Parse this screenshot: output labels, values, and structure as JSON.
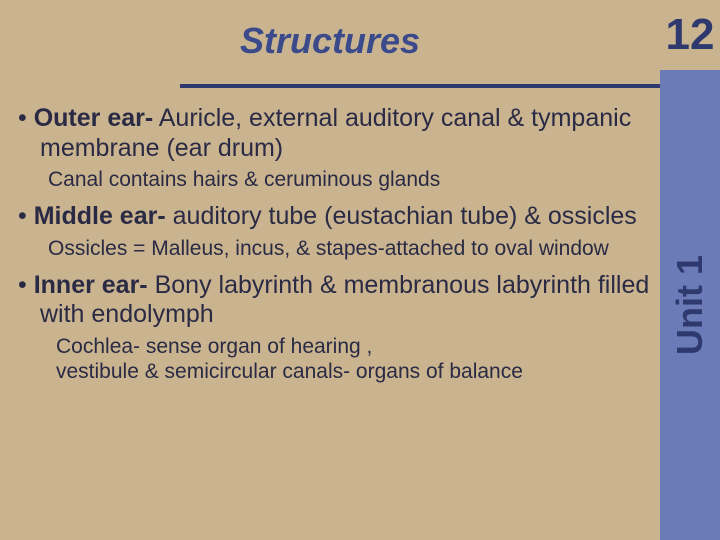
{
  "colors": {
    "slide_bg": "#c9b48f",
    "sidebar_bg": "#6a7bb8",
    "title_color": "#3a4a8a",
    "hr_color": "#2e3a6e",
    "body_text": "#2a2a44",
    "page_number_color": "#2e3a6e",
    "unit_label_color": "#2e3a6e"
  },
  "typography": {
    "title_fontsize": 36,
    "body_fontsize": 25,
    "sub_fontsize": 21,
    "page_number_fontsize": 44,
    "unit_label_fontsize": 36
  },
  "page_number": "12",
  "unit_label": "Unit 1",
  "title": "Structures",
  "bullets": [
    {
      "bold": "Outer ear-",
      "rest": " Auricle, external auditory canal & tympanic membrane (ear drum)",
      "subs": [
        "Canal contains hairs & ceruminous glands"
      ]
    },
    {
      "bold": "Middle ear-",
      "rest": " auditory tube (eustachian tube) & ossicles",
      "subs": [
        "Ossicles = Malleus, incus, & stapes-attached to oval window"
      ]
    },
    {
      "bold": "Inner ear-",
      "rest": " Bony labyrinth & membranous labyrinth filled with endolymph",
      "subs": [
        "Cochlea- sense organ of hearing ,",
        " vestibule & semicircular canals- organs of balance"
      ]
    }
  ]
}
